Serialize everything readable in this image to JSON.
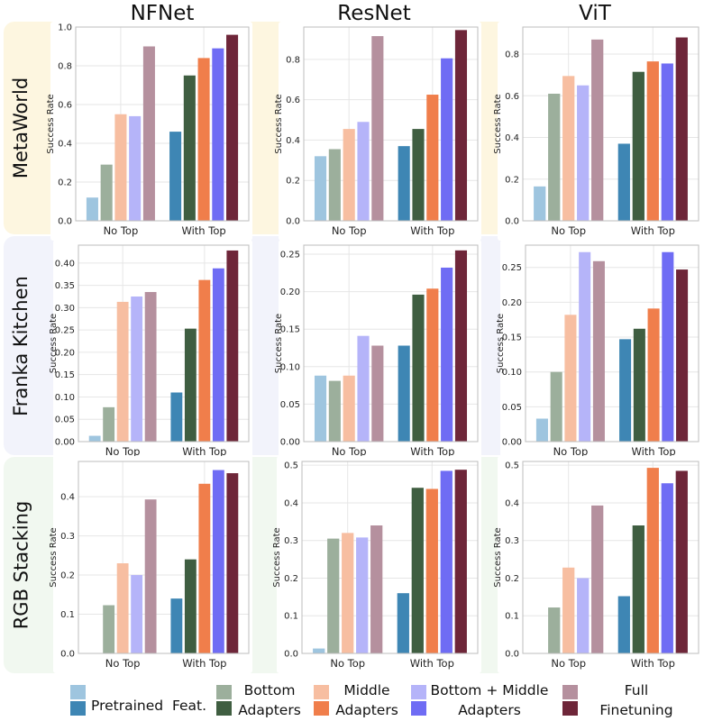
{
  "col_titles": [
    "NFNet",
    "ResNet",
    "ViT"
  ],
  "row_labels": [
    "MetaWorld",
    "Franka Kitchen",
    "RGB Stacking"
  ],
  "row_band_colors": [
    "#fdf6e0",
    "#f2f3fb",
    "#f1f8f0"
  ],
  "legend": {
    "groups": [
      {
        "name": "pretrained-features",
        "line1": "",
        "line2": "Pretrained  Feat.",
        "colors": [
          "#9ec5df",
          "#3e86b4"
        ]
      },
      {
        "name": "bottom-adapters",
        "line1": "Bottom",
        "line2": "Adapters",
        "colors": [
          "#9caf9c",
          "#3f5e41"
        ]
      },
      {
        "name": "middle-adapters",
        "line1": "Middle",
        "line2": "Adapters",
        "colors": [
          "#f7bea1",
          "#f07e4b"
        ]
      },
      {
        "name": "bottom-middle-adapters",
        "line1": "Bottom + Middle",
        "line2": "Adapters",
        "colors": [
          "#b5b4f9",
          "#6f6cf4"
        ]
      },
      {
        "name": "finetuning",
        "line1": "Full",
        "line2": "Finetuning",
        "colors": [
          "#b5909e",
          "#6e2639"
        ]
      }
    ]
  },
  "chart_data": [
    {
      "id": "metaworld-nfnet",
      "type": "bar",
      "ylabel": "Success Rate",
      "categories": [
        "No Top",
        "With Top"
      ],
      "ylim": [
        0,
        1.0
      ],
      "ticks": [
        0,
        0.2,
        0.4,
        0.6,
        0.8,
        1.0
      ],
      "tick_labels": [
        "0.0",
        "0.2",
        "0.4",
        "0.6",
        "0.8",
        "1.0"
      ],
      "series": [
        {
          "name": "Pretrained Feat.",
          "values": [
            0.12,
            0.46
          ]
        },
        {
          "name": "Bottom Adapters",
          "values": [
            0.29,
            0.75
          ]
        },
        {
          "name": "Middle Adapters",
          "values": [
            0.55,
            0.84
          ]
        },
        {
          "name": "Bottom + Middle Adapters",
          "values": [
            0.54,
            0.89
          ]
        },
        {
          "name": "Full Finetuning",
          "values": [
            0.9,
            0.96
          ]
        }
      ]
    },
    {
      "id": "metaworld-resnet",
      "type": "bar",
      "ylabel": "Success Rate",
      "categories": [
        "No Top",
        "With Top"
      ],
      "ylim": [
        0,
        0.96
      ],
      "ticks": [
        0,
        0.2,
        0.4,
        0.6,
        0.8
      ],
      "tick_labels": [
        "0.0",
        "0.2",
        "0.4",
        "0.6",
        "0.8"
      ],
      "series": [
        {
          "name": "Pretrained Feat.",
          "values": [
            0.32,
            0.37
          ]
        },
        {
          "name": "Bottom Adapters",
          "values": [
            0.355,
            0.455
          ]
        },
        {
          "name": "Middle Adapters",
          "values": [
            0.455,
            0.625
          ]
        },
        {
          "name": "Bottom + Middle Adapters",
          "values": [
            0.49,
            0.805
          ]
        },
        {
          "name": "Full Finetuning",
          "values": [
            0.915,
            0.945
          ]
        }
      ]
    },
    {
      "id": "metaworld-vit",
      "type": "bar",
      "ylabel": "Success Rate",
      "categories": [
        "No Top",
        "With Top"
      ],
      "ylim": [
        0,
        0.93
      ],
      "ticks": [
        0,
        0.2,
        0.4,
        0.6,
        0.8
      ],
      "tick_labels": [
        "0.0",
        "0.2",
        "0.4",
        "0.6",
        "0.8"
      ],
      "series": [
        {
          "name": "Pretrained Feat.",
          "values": [
            0.165,
            0.37
          ]
        },
        {
          "name": "Bottom Adapters",
          "values": [
            0.61,
            0.715
          ]
        },
        {
          "name": "Middle Adapters",
          "values": [
            0.695,
            0.765
          ]
        },
        {
          "name": "Bottom + Middle Adapters",
          "values": [
            0.65,
            0.755
          ]
        },
        {
          "name": "Full Finetuning",
          "values": [
            0.87,
            0.88
          ]
        }
      ]
    },
    {
      "id": "franka-nfnet",
      "type": "bar",
      "ylabel": "Success Rate",
      "categories": [
        "No Top",
        "With Top"
      ],
      "ylim": [
        0,
        0.44
      ],
      "ticks": [
        0,
        0.05,
        0.1,
        0.15,
        0.2,
        0.25,
        0.3,
        0.35,
        0.4
      ],
      "tick_labels": [
        "0.00",
        "0.05",
        "0.10",
        "0.15",
        "0.20",
        "0.25",
        "0.30",
        "0.35",
        "0.40"
      ],
      "series": [
        {
          "name": "Pretrained Feat.",
          "values": [
            0.013,
            0.11
          ]
        },
        {
          "name": "Bottom Adapters",
          "values": [
            0.077,
            0.253
          ]
        },
        {
          "name": "Middle Adapters",
          "values": [
            0.313,
            0.362
          ]
        },
        {
          "name": "Bottom + Middle Adapters",
          "values": [
            0.325,
            0.388
          ]
        },
        {
          "name": "Full Finetuning",
          "values": [
            0.335,
            0.428
          ]
        }
      ]
    },
    {
      "id": "franka-resnet",
      "type": "bar",
      "ylabel": "Success Rate",
      "categories": [
        "No Top",
        "With Top"
      ],
      "ylim": [
        0,
        0.262
      ],
      "ticks": [
        0,
        0.05,
        0.1,
        0.15,
        0.2,
        0.25
      ],
      "tick_labels": [
        "0.00",
        "0.05",
        "0.10",
        "0.15",
        "0.20",
        "0.25"
      ],
      "series": [
        {
          "name": "Pretrained Feat.",
          "values": [
            0.088,
            0.128
          ]
        },
        {
          "name": "Bottom Adapters",
          "values": [
            0.081,
            0.196
          ]
        },
        {
          "name": "Middle Adapters",
          "values": [
            0.088,
            0.204
          ]
        },
        {
          "name": "Bottom + Middle Adapters",
          "values": [
            0.141,
            0.232
          ]
        },
        {
          "name": "Full Finetuning",
          "values": [
            0.128,
            0.255
          ]
        }
      ]
    },
    {
      "id": "franka-vit",
      "type": "bar",
      "ylabel": "Success Rate",
      "categories": [
        "No Top",
        "With Top"
      ],
      "ylim": [
        0,
        0.282
      ],
      "ticks": [
        0,
        0.05,
        0.1,
        0.15,
        0.2,
        0.25
      ],
      "tick_labels": [
        "0.00",
        "0.05",
        "0.10",
        "0.15",
        "0.20",
        "0.25"
      ],
      "series": [
        {
          "name": "Pretrained Feat.",
          "values": [
            0.033,
            0.147
          ]
        },
        {
          "name": "Bottom Adapters",
          "values": [
            0.1,
            0.162
          ]
        },
        {
          "name": "Middle Adapters",
          "values": [
            0.182,
            0.191
          ]
        },
        {
          "name": "Bottom + Middle Adapters",
          "values": [
            0.272,
            0.272
          ]
        },
        {
          "name": "Full Finetuning",
          "values": [
            0.259,
            0.247
          ]
        }
      ]
    },
    {
      "id": "rgb-nfnet",
      "type": "bar",
      "ylabel": "Success Rate",
      "categories": [
        "No Top",
        "With Top"
      ],
      "ylim": [
        0,
        0.49
      ],
      "ticks": [
        0,
        0.1,
        0.2,
        0.3,
        0.4
      ],
      "tick_labels": [
        "0.0",
        "0.1",
        "0.2",
        "0.3",
        "0.4"
      ],
      "series": [
        {
          "name": "Pretrained Feat.",
          "values": [
            0,
            0.14
          ]
        },
        {
          "name": "Bottom Adapters",
          "values": [
            0.123,
            0.24
          ]
        },
        {
          "name": "Middle Adapters",
          "values": [
            0.23,
            0.433
          ]
        },
        {
          "name": "Bottom + Middle Adapters",
          "values": [
            0.2,
            0.468
          ]
        },
        {
          "name": "Full Finetuning",
          "values": [
            0.393,
            0.46
          ]
        }
      ]
    },
    {
      "id": "rgb-resnet",
      "type": "bar",
      "ylabel": "Success Rate",
      "categories": [
        "No Top",
        "With Top"
      ],
      "ylim": [
        0,
        0.51
      ],
      "ticks": [
        0,
        0.1,
        0.2,
        0.3,
        0.4,
        0.5
      ],
      "tick_labels": [
        "0.0",
        "0.1",
        "0.2",
        "0.3",
        "0.4",
        "0.5"
      ],
      "series": [
        {
          "name": "Pretrained Feat.",
          "values": [
            0.013,
            0.16
          ]
        },
        {
          "name": "Bottom Adapters",
          "values": [
            0.305,
            0.44
          ]
        },
        {
          "name": "Middle Adapters",
          "values": [
            0.32,
            0.437
          ]
        },
        {
          "name": "Bottom + Middle Adapters",
          "values": [
            0.308,
            0.485
          ]
        },
        {
          "name": "Full Finetuning",
          "values": [
            0.34,
            0.488
          ]
        }
      ]
    },
    {
      "id": "rgb-vit",
      "type": "bar",
      "ylabel": "Success Rate",
      "categories": [
        "No Top",
        "With Top"
      ],
      "ylim": [
        0,
        0.51
      ],
      "ticks": [
        0,
        0.1,
        0.2,
        0.3,
        0.4,
        0.5
      ],
      "tick_labels": [
        "0.0",
        "0.1",
        "0.2",
        "0.3",
        "0.4",
        "0.5"
      ],
      "series": [
        {
          "name": "Pretrained Feat.",
          "values": [
            0,
            0.152
          ]
        },
        {
          "name": "Bottom Adapters",
          "values": [
            0.122,
            0.34
          ]
        },
        {
          "name": "Middle Adapters",
          "values": [
            0.228,
            0.493
          ]
        },
        {
          "name": "Bottom + Middle Adapters",
          "values": [
            0.2,
            0.452
          ]
        },
        {
          "name": "Full Finetuning",
          "values": [
            0.393,
            0.485
          ]
        }
      ]
    }
  ]
}
